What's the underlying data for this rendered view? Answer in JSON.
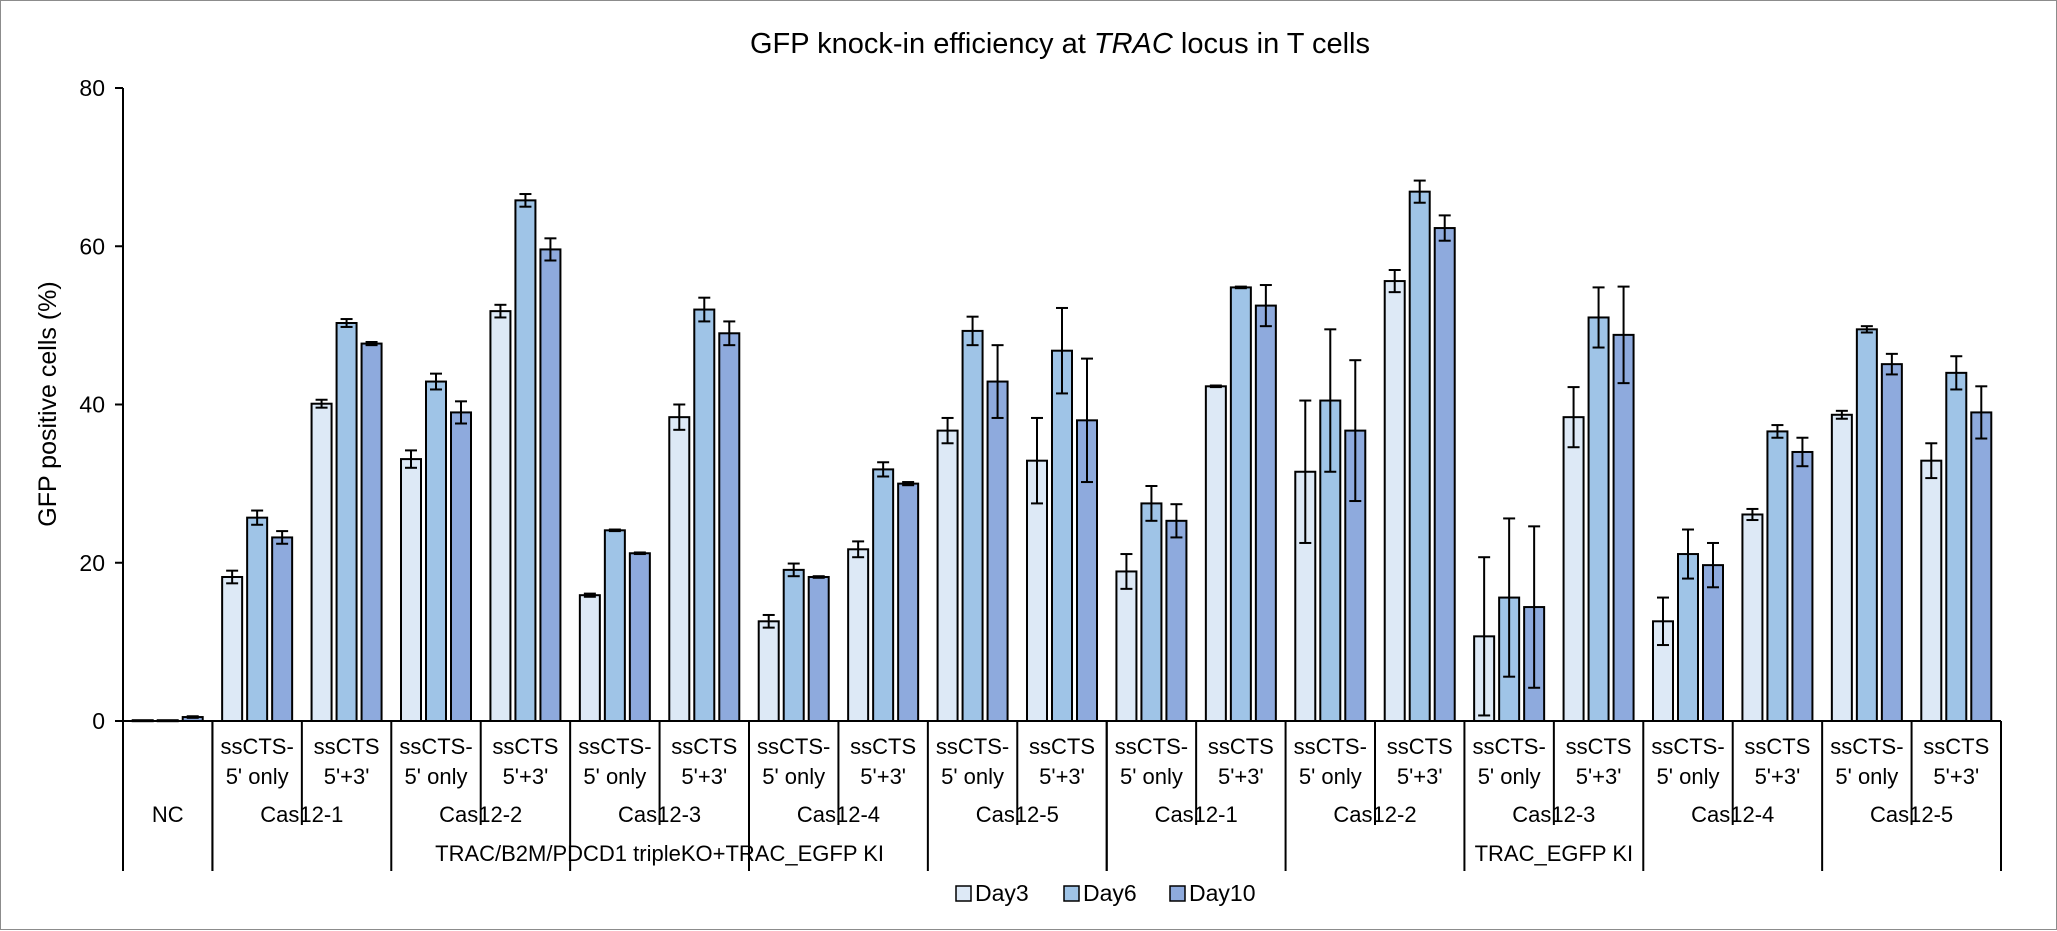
{
  "chart_data": {
    "type": "bar",
    "title": "GFP knock-in efficiency at TRAC locus in T cells",
    "title_parts": [
      {
        "text": "GFP knock-in efficiency at ",
        "italic": false
      },
      {
        "text": "TRAC",
        "italic": true
      },
      {
        "text": " locus in T cells",
        "italic": false
      }
    ],
    "xlabel": "",
    "ylabel": "GFP positive cells (%)",
    "ylim": [
      0,
      80
    ],
    "yticks": [
      0,
      20,
      40,
      60,
      80
    ],
    "grid": false,
    "legend_position": "bottom-center",
    "series": [
      {
        "name": "Day3",
        "color": "#dde9f6"
      },
      {
        "name": "Day6",
        "color": "#9fc4e7"
      },
      {
        "name": "Day10",
        "color": "#8eaadd"
      }
    ],
    "categories": [
      {
        "construct": "",
        "nuclease": "NC",
        "group": "",
        "values": [
          0.1,
          0.1,
          0.5
        ],
        "errors": [
          0.0,
          0.0,
          0.1
        ]
      },
      {
        "construct": "ssCTS-\n5' only",
        "nuclease": "Cas12-1",
        "group": "TRAC/B2M/PDCD1 tripleKO+TRAC_EGFP KI",
        "values": [
          18.2,
          25.7,
          23.2
        ],
        "errors": [
          0.8,
          0.9,
          0.8
        ]
      },
      {
        "construct": "ssCTS\n5'+3'",
        "nuclease": "Cas12-1",
        "group": "TRAC/B2M/PDCD1 tripleKO+TRAC_EGFP KI",
        "values": [
          40.1,
          50.3,
          47.7
        ],
        "errors": [
          0.5,
          0.5,
          0.2
        ]
      },
      {
        "construct": "ssCTS-\n5' only",
        "nuclease": "Cas12-2",
        "group": "TRAC/B2M/PDCD1 tripleKO+TRAC_EGFP KI",
        "values": [
          33.1,
          42.9,
          39.0
        ],
        "errors": [
          1.1,
          1.0,
          1.4
        ]
      },
      {
        "construct": "ssCTS\n5'+3'",
        "nuclease": "Cas12-2",
        "group": "TRAC/B2M/PDCD1 tripleKO+TRAC_EGFP KI",
        "values": [
          51.8,
          65.8,
          59.6
        ],
        "errors": [
          0.8,
          0.8,
          1.4
        ]
      },
      {
        "construct": "ssCTS-\n5' only",
        "nuclease": "Cas12-3",
        "group": "TRAC/B2M/PDCD1 tripleKO+TRAC_EGFP KI",
        "values": [
          15.9,
          24.1,
          21.2
        ],
        "errors": [
          0.2,
          0.1,
          0.1
        ]
      },
      {
        "construct": "ssCTS\n5'+3'",
        "nuclease": "Cas12-3",
        "group": "TRAC/B2M/PDCD1 tripleKO+TRAC_EGFP KI",
        "values": [
          38.4,
          52.0,
          49.0
        ],
        "errors": [
          1.6,
          1.5,
          1.5
        ]
      },
      {
        "construct": "ssCTS-\n5' only",
        "nuclease": "Cas12-4",
        "group": "TRAC/B2M/PDCD1 tripleKO+TRAC_EGFP KI",
        "values": [
          12.6,
          19.1,
          18.2
        ],
        "errors": [
          0.8,
          0.8,
          0.1
        ]
      },
      {
        "construct": "ssCTS\n5'+3'",
        "nuclease": "Cas12-4",
        "group": "TRAC/B2M/PDCD1 tripleKO+TRAC_EGFP KI",
        "values": [
          21.7,
          31.8,
          30.0
        ],
        "errors": [
          1.0,
          0.9,
          0.2
        ]
      },
      {
        "construct": "ssCTS-\n5' only",
        "nuclease": "Cas12-5",
        "group": "TRAC/B2M/PDCD1 tripleKO+TRAC_EGFP KI",
        "values": [
          36.7,
          49.3,
          42.9
        ],
        "errors": [
          1.6,
          1.8,
          4.6
        ]
      },
      {
        "construct": "ssCTS\n5'+3'",
        "nuclease": "Cas12-5",
        "group": "TRAC/B2M/PDCD1 tripleKO+TRAC_EGFP KI",
        "values": [
          32.9,
          46.8,
          38.0
        ],
        "errors": [
          5.4,
          5.4,
          7.8
        ]
      },
      {
        "construct": "ssCTS-\n5' only",
        "nuclease": "Cas12-1",
        "group": "TRAC_EGFP KI",
        "values": [
          18.9,
          27.5,
          25.3
        ],
        "errors": [
          2.2,
          2.2,
          2.1
        ]
      },
      {
        "construct": "ssCTS\n5'+3'",
        "nuclease": "Cas12-1",
        "group": "TRAC_EGFP KI",
        "values": [
          42.3,
          54.8,
          52.5
        ],
        "errors": [
          0.1,
          0.1,
          2.6
        ]
      },
      {
        "construct": "ssCTS-\n5' only",
        "nuclease": "Cas12-2",
        "group": "TRAC_EGFP KI",
        "values": [
          31.5,
          40.5,
          36.7
        ],
        "errors": [
          9.0,
          9.0,
          8.9
        ]
      },
      {
        "construct": "ssCTS\n5'+3'",
        "nuclease": "Cas12-2",
        "group": "TRAC_EGFP KI",
        "values": [
          55.6,
          66.9,
          62.3
        ],
        "errors": [
          1.4,
          1.4,
          1.6
        ]
      },
      {
        "construct": "ssCTS-\n5' only",
        "nuclease": "Cas12-3",
        "group": "TRAC_EGFP KI",
        "values": [
          10.7,
          15.6,
          14.4
        ],
        "errors": [
          10.0,
          10.0,
          10.2
        ]
      },
      {
        "construct": "ssCTS\n5'+3'",
        "nuclease": "Cas12-3",
        "group": "TRAC_EGFP KI",
        "values": [
          38.4,
          51.0,
          48.8
        ],
        "errors": [
          3.8,
          3.8,
          6.1
        ]
      },
      {
        "construct": "ssCTS-\n5' only",
        "nuclease": "Cas12-4",
        "group": "TRAC_EGFP KI",
        "values": [
          12.6,
          21.1,
          19.7
        ],
        "errors": [
          3.0,
          3.1,
          2.8
        ]
      },
      {
        "construct": "ssCTS\n5'+3'",
        "nuclease": "Cas12-4",
        "group": "TRAC_EGFP KI",
        "values": [
          26.1,
          36.6,
          34.0
        ],
        "errors": [
          0.7,
          0.8,
          1.8
        ]
      },
      {
        "construct": "ssCTS-\n5' only",
        "nuclease": "Cas12-5",
        "group": "TRAC_EGFP KI",
        "values": [
          38.7,
          49.5,
          45.1
        ],
        "errors": [
          0.5,
          0.4,
          1.3
        ]
      },
      {
        "construct": "ssCTS\n5'+3'",
        "nuclease": "Cas12-5",
        "group": "TRAC_EGFP KI",
        "values": [
          32.9,
          44.0,
          39.0
        ],
        "errors": [
          2.2,
          2.1,
          3.3
        ]
      }
    ],
    "nuclease_groups": [
      {
        "label": "NC",
        "span": [
          0,
          0
        ]
      },
      {
        "label": "Cas12-1",
        "span": [
          1,
          2
        ]
      },
      {
        "label": "Cas12-2",
        "span": [
          3,
          4
        ]
      },
      {
        "label": "Cas12-3",
        "span": [
          5,
          6
        ]
      },
      {
        "label": "Cas12-4",
        "span": [
          7,
          8
        ]
      },
      {
        "label": "Cas12-5",
        "span": [
          9,
          10
        ]
      },
      {
        "label": "Cas12-1",
        "span": [
          11,
          12
        ]
      },
      {
        "label": "Cas12-2",
        "span": [
          13,
          14
        ]
      },
      {
        "label": "Cas12-3",
        "span": [
          15,
          16
        ]
      },
      {
        "label": "Cas12-4",
        "span": [
          17,
          18
        ]
      },
      {
        "label": "Cas12-5",
        "span": [
          19,
          20
        ]
      }
    ],
    "top_groups": [
      {
        "label": "",
        "span": [
          0,
          0
        ]
      },
      {
        "label": "TRAC/B2M/PDCD1 tripleKO+TRAC_EGFP KI",
        "span": [
          1,
          10
        ]
      },
      {
        "label": "TRAC_EGFP KI",
        "span": [
          11,
          20
        ]
      }
    ]
  }
}
